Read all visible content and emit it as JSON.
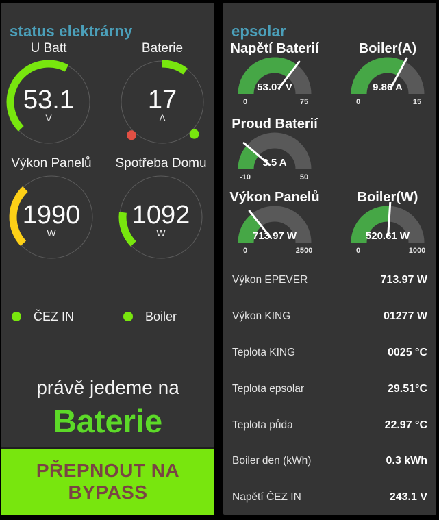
{
  "left_panel": {
    "title": "status elektrárny",
    "gauges": [
      {
        "name": "U Batt",
        "value": "53.1",
        "unit": "V"
      },
      {
        "name": "Baterie",
        "value": "17",
        "unit": "A"
      },
      {
        "name": "Výkon Panelů",
        "value": "1990",
        "unit": "W"
      },
      {
        "name": "Spotřeba Domu",
        "value": "1092",
        "unit": "W"
      }
    ],
    "indicators": [
      {
        "label": "ČEZ IN",
        "state_color": "#78e60e"
      },
      {
        "label": "Boiler",
        "state_color": "#78e60e"
      }
    ],
    "status_prefix": "právě jedeme na",
    "status_value": "Baterie",
    "bypass_button_label": "PŘEPNOUT NA BYPASS"
  },
  "right_panel": {
    "title": "epsolar",
    "gauges": [
      {
        "name": "Napětí Baterií",
        "value": 53.07,
        "display": "53.07 V",
        "min": 0,
        "max": 75
      },
      {
        "name": "Boiler(A)",
        "value": 9.86,
        "display": "9.86 A",
        "min": 0,
        "max": 15
      },
      {
        "name": "Proud Baterií",
        "value": 3.5,
        "display": "3.5 A",
        "min": -10,
        "max": 50
      },
      {
        "name": "Výkon Panelů",
        "value": 713.97,
        "display": "713.97 W",
        "min": 0,
        "max": 2500
      },
      {
        "name": "Boiler(W)",
        "value": 520.61,
        "display": "520.61 W",
        "min": 0,
        "max": 1000
      }
    ],
    "rows": [
      {
        "label": "Výkon EPEVER",
        "value": "713.97 W"
      },
      {
        "label": "Výkon KING",
        "value": "01277 W"
      },
      {
        "label": "Teplota KING",
        "value": "0025 °C"
      },
      {
        "label": "Teplota epsolar",
        "value": "29.51°C"
      },
      {
        "label": "Teplota půda",
        "value": "22.97 °C"
      },
      {
        "label": "Boiler den (kWh)",
        "value": "0.3 kWh"
      },
      {
        "label": "Napětí ČEZ IN",
        "value": "243.1 V"
      }
    ]
  },
  "colors": {
    "accent": "#4b9fb9",
    "bright_green": "#78e60e",
    "status_green": "#5cd928",
    "gold": "#fdd017",
    "alert_red": "#e25044",
    "gauge_green": "#46a746",
    "gauge_track": "#595959",
    "button_bg": "#78e60e",
    "button_text": "#7a4444"
  }
}
